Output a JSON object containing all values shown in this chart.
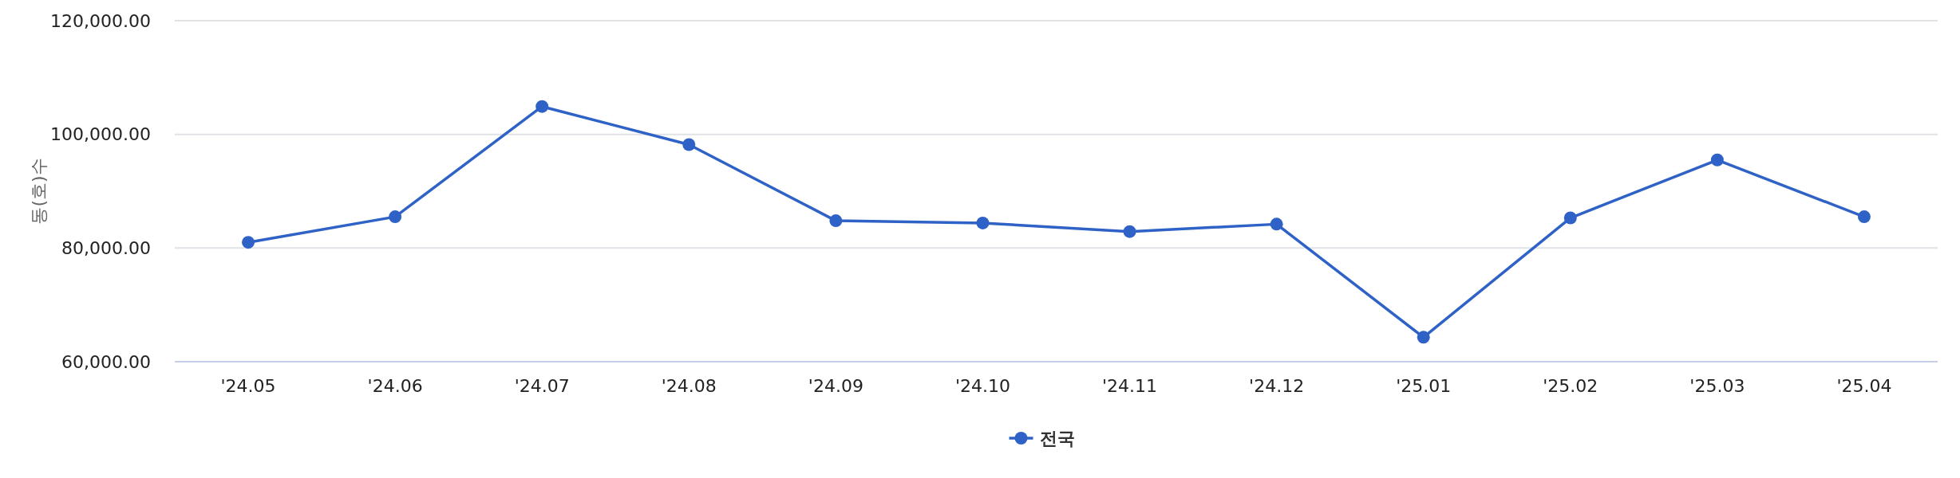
{
  "chart_data": {
    "type": "line",
    "ylabel": "동(호)수",
    "categories": [
      "'24.05",
      "'24.06",
      "'24.07",
      "'24.08",
      "'24.09",
      "'24.10",
      "'24.11",
      "'24.12",
      "'25.01",
      "'25.02",
      "'25.03",
      "'25.04"
    ],
    "series": [
      {
        "name": "전국",
        "color": "#2f62c6",
        "values": [
          81000,
          85500,
          104900,
          98200,
          84800,
          84400,
          82900,
          84200,
          64300,
          85300,
          95500,
          85500
        ]
      }
    ],
    "ylim": [
      60000,
      120000
    ],
    "yticks": [
      {
        "value": 60000,
        "label": "60,000.00"
      },
      {
        "value": 80000,
        "label": "80,000.00"
      },
      {
        "value": 100000,
        "label": "100,000.00"
      },
      {
        "value": 120000,
        "label": "120,000.00"
      }
    ],
    "grid": "y",
    "legend": "bottom",
    "marker": "circle",
    "line_style": "solid"
  }
}
